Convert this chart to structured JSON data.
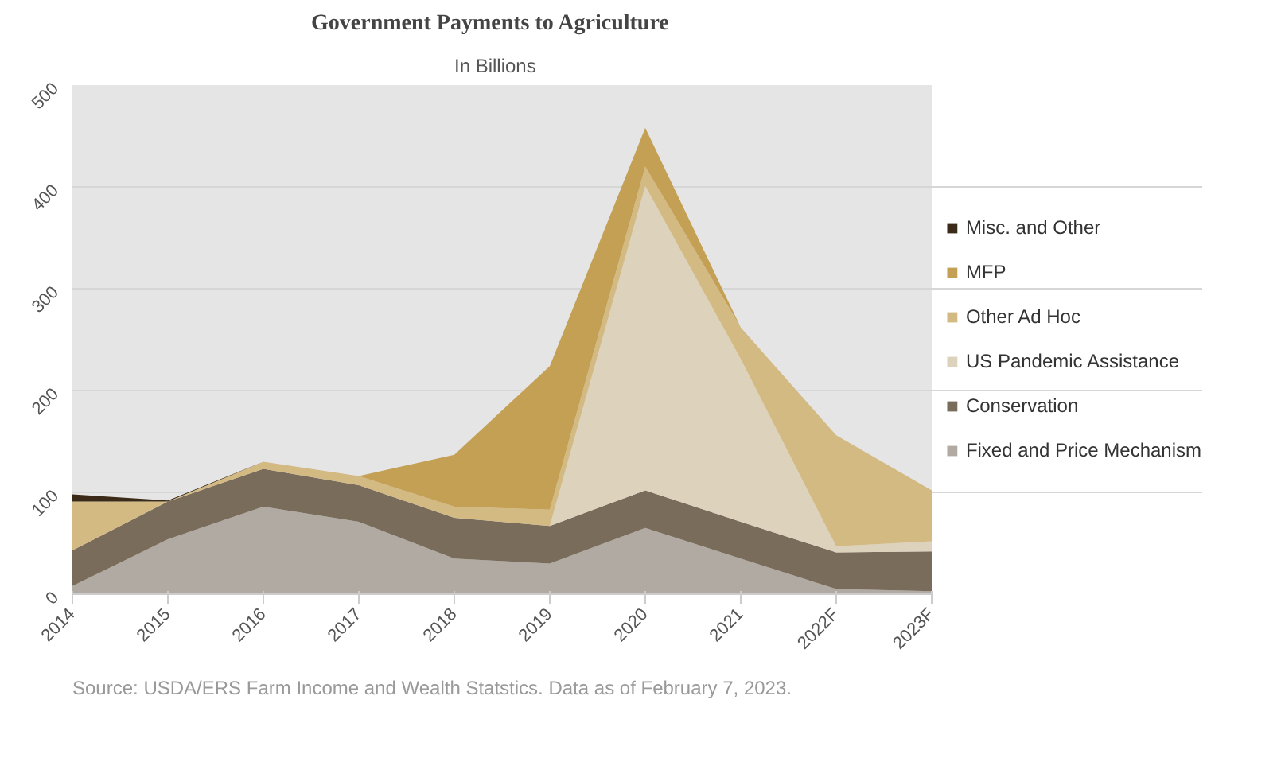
{
  "chart_data": {
    "type": "area",
    "stacked": true,
    "title": "Government Payments to Agriculture",
    "subtitle": "In Billions",
    "categories": [
      "2014",
      "2015",
      "2016",
      "2017",
      "2018",
      "2019",
      "2020",
      "2021",
      "2022F",
      "2023F"
    ],
    "series": [
      {
        "name": "Fixed and Price Mechanism",
        "color": "#b0aaa3",
        "values": [
          8,
          54,
          86,
          71,
          35,
          30,
          65,
          35,
          5,
          3
        ]
      },
      {
        "name": "Conservation",
        "color": "#7a6c5b",
        "values": [
          35,
          37,
          37,
          36,
          40,
          37,
          37,
          36,
          36,
          39
        ]
      },
      {
        "name": "US Pandemic Assistance",
        "color": "#ddd2bb",
        "values": [
          0,
          0,
          0,
          0,
          0,
          0,
          299,
          160,
          6,
          10
        ]
      },
      {
        "name": "Other Ad Hoc",
        "color": "#d3b982",
        "values": [
          48,
          0,
          7,
          9,
          11,
          16,
          19,
          31,
          109,
          50
        ]
      },
      {
        "name": "MFP",
        "color": "#c4a055",
        "values": [
          0,
          0,
          0,
          0,
          51,
          141,
          38,
          0,
          0,
          0
        ]
      },
      {
        "name": "Misc. and Other",
        "color": "#3b2a17",
        "values": [
          7,
          1,
          0,
          0,
          0,
          0,
          0,
          0,
          0,
          0
        ]
      }
    ],
    "ylim": [
      0,
      500
    ],
    "yticks": [
      0,
      100,
      200,
      300,
      400,
      500
    ],
    "grid": "y",
    "legend": "right",
    "annotations": [
      "Source: USDA/ERS Farm Income and Wealth Statstics. Data as of February 7, 2023."
    ]
  }
}
